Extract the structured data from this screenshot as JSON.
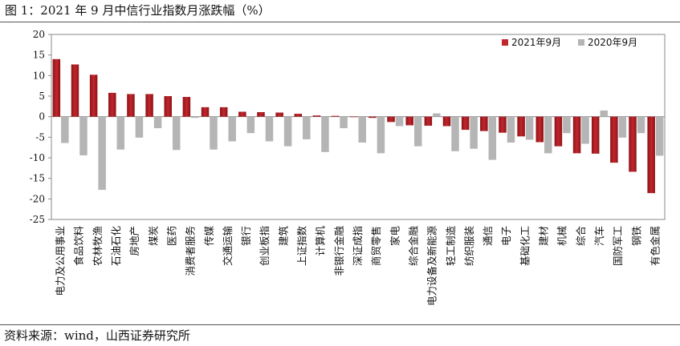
{
  "header": {
    "title": "图 1：2021 年 9 月中信行业指数月涨跌幅（%）"
  },
  "footer": {
    "source": "资料来源：wind，山西证券研究所"
  },
  "chart_data": {
    "type": "bar",
    "title": "图 1：2021 年 9 月中信行业指数月涨跌幅（%）",
    "ylim": [
      -25,
      20
    ],
    "yticks": [
      20,
      15,
      10,
      5,
      0,
      -5,
      -10,
      -15,
      -20,
      -25
    ],
    "grid": false,
    "legend_position": "top-right",
    "categories": [
      "电力及公用事业",
      "食品饮料",
      "农林牧渔",
      "石油石化",
      "房地产",
      "煤炭",
      "医药",
      "消费者服务",
      "传媒",
      "交通运输",
      "银行",
      "创业板指",
      "建筑",
      "上证指数",
      "计算机",
      "非银行金融",
      "深证成指",
      "商贸零售",
      "家电",
      "综合金融",
      "电力设备及新能源",
      "轻工制造",
      "纺织服装",
      "通信",
      "电子",
      "基础化工",
      "建材",
      "机械",
      "综合",
      "汽车",
      "国防军工",
      "钢铁",
      "有色金属"
    ],
    "series": [
      {
        "name": "2021年9月",
        "color": "#c0272d",
        "values": [
          14.0,
          12.7,
          10.2,
          5.8,
          5.5,
          5.5,
          5.0,
          4.8,
          2.3,
          2.3,
          1.2,
          1.1,
          1.0,
          0.7,
          0.3,
          0.2,
          -0.1,
          -0.3,
          -1.3,
          -2.1,
          -2.2,
          -2.3,
          -3.2,
          -3.5,
          -3.9,
          -4.8,
          -6.2,
          -7.2,
          -8.9,
          -9.0,
          -11.2,
          -13.4,
          -18.6
        ]
      },
      {
        "name": "2020年9月",
        "color": "#b5b5b5",
        "values": [
          -6.4,
          -9.4,
          -17.8,
          -8.0,
          -5.1,
          -2.8,
          -8.1,
          -0.3,
          -8.0,
          -6.0,
          -4.0,
          -6.0,
          -7.2,
          -5.5,
          -8.6,
          -2.8,
          -6.3,
          -8.9,
          -2.3,
          -7.2,
          0.8,
          -8.4,
          -7.8,
          -10.5,
          -6.3,
          -5.6,
          -8.9,
          -4.0,
          -6.6,
          1.5,
          -5.1,
          -4.0,
          -9.5
        ]
      }
    ]
  }
}
